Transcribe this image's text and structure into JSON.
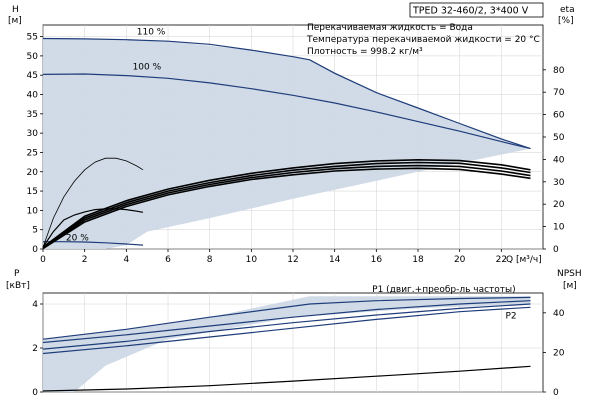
{
  "header": {
    "model": "TPED 32-460/2, 3*400 V",
    "fluid": "Перекачиваемая жидкость = Вода",
    "temp": "Температура перекачиваемой жидкости = 20 °C",
    "density": "Плотность = 998.2 кг/м³"
  },
  "colors": {
    "curve": "#1f3d7a",
    "area": "#cdd9e6",
    "area_light": "#e3ecf4",
    "grid": "#d0d0d0",
    "axis": "#000000"
  },
  "chart_data": [
    {
      "type": "line",
      "title": "",
      "xlabel": "Q [м³/ч]",
      "xlabel_unit": "Q [м³/ч]",
      "ylabel_left": [
        "H",
        "[м]"
      ],
      "ylabel_right": [
        "eta",
        "[%]"
      ],
      "xlim": [
        0,
        24
      ],
      "ylim_left": [
        0,
        58
      ],
      "ylim_right": [
        0,
        100
      ],
      "xticks": [
        0,
        2,
        4,
        6,
        8,
        10,
        12,
        14,
        16,
        18,
        20,
        22
      ],
      "yticks_left": [
        0,
        5,
        10,
        15,
        20,
        25,
        30,
        35,
        40,
        45,
        50,
        55
      ],
      "yticks_right": [
        0,
        10,
        20,
        30,
        40,
        50,
        60,
        70,
        80
      ],
      "grid": true,
      "envelope": [
        [
          0,
          54.5
        ],
        [
          2,
          54.4
        ],
        [
          6,
          53.8
        ],
        [
          10,
          51.5
        ],
        [
          12.8,
          49
        ],
        [
          16,
          40.5
        ],
        [
          20,
          32.5
        ],
        [
          23.4,
          26
        ],
        [
          18,
          20
        ],
        [
          12,
          13
        ],
        [
          8,
          8
        ],
        [
          5,
          4.5
        ],
        [
          4,
          1
        ],
        [
          3,
          0
        ],
        [
          0,
          0
        ]
      ],
      "series": [
        {
          "name": "110 %",
          "label": "110 %",
          "x": [
            0,
            2,
            4,
            6,
            8,
            10,
            12,
            12.8,
            14,
            16,
            18,
            20,
            22,
            23.4
          ],
          "y": [
            54.5,
            54.4,
            54.2,
            53.8,
            53.0,
            51.5,
            49.8,
            49,
            45.5,
            40.5,
            36.5,
            32.5,
            28.5,
            26
          ]
        },
        {
          "name": "100 %",
          "label": "100 %",
          "x": [
            0,
            2,
            4,
            6,
            8,
            10,
            12,
            14,
            16,
            18,
            20,
            22,
            23.4
          ],
          "y": [
            45.2,
            45.3,
            44.9,
            44.2,
            43.0,
            41.5,
            39.8,
            37.8,
            35.5,
            33,
            30.5,
            27.8,
            26
          ]
        },
        {
          "name": "20 %",
          "label": "20 %",
          "x": [
            0,
            1,
            2,
            3,
            4,
            4.8
          ],
          "y": [
            1.9,
            1.9,
            1.8,
            1.6,
            1.3,
            1.0
          ]
        },
        {
          "name": "",
          "label": "",
          "x": [
            0,
            0.5,
            1,
            1.5,
            2,
            2.5,
            3,
            3.5,
            4,
            4.5,
            4.8
          ],
          "y": [
            0.5,
            8.0,
            13.5,
            17.5,
            20.5,
            22.5,
            23.5,
            23.5,
            22.8,
            21.5,
            20.5
          ]
        },
        {
          "name": "",
          "label": "",
          "x": [
            0,
            0.5,
            1,
            1.5,
            2,
            2.5,
            3,
            3.5,
            4,
            4.5,
            4.8
          ],
          "y": [
            0.5,
            4.5,
            7.5,
            8.8,
            9.6,
            10.2,
            10.4,
            10.4,
            10.2,
            9.8,
            9.5
          ]
        },
        {
          "name": "",
          "label": "",
          "x": [
            0,
            2,
            4,
            6,
            8,
            10,
            12,
            14,
            16,
            18,
            20,
            22,
            23.4
          ],
          "y": [
            0.5,
            8.5,
            12.5,
            15.5,
            17.8,
            19.6,
            21.0,
            22.1,
            22.8,
            23.1,
            22.9,
            21.8,
            20.5
          ]
        },
        {
          "name": "",
          "label": "",
          "x": [
            0,
            2,
            4,
            6,
            8,
            10,
            12,
            14,
            16,
            18,
            20,
            22,
            23.4
          ],
          "y": [
            0.3,
            8.0,
            12.0,
            15.0,
            17.2,
            19.0,
            20.4,
            21.4,
            22.1,
            22.4,
            22.2,
            21.0,
            19.8
          ]
        },
        {
          "name": "",
          "label": "",
          "x": [
            0,
            2,
            4,
            6,
            8,
            10,
            12,
            14,
            16,
            18,
            20,
            22,
            23.4
          ],
          "y": [
            0.2,
            7.5,
            11.5,
            14.5,
            16.7,
            18.5,
            19.8,
            20.8,
            21.4,
            21.6,
            21.4,
            20.2,
            19.0
          ]
        },
        {
          "name": "",
          "label": "",
          "x": [
            0,
            2,
            4,
            6,
            8,
            10,
            12,
            14,
            16,
            18,
            20,
            22,
            23.4
          ],
          "y": [
            0.1,
            7.0,
            11.0,
            14.0,
            16.2,
            18.0,
            19.2,
            20.2,
            20.7,
            20.9,
            20.6,
            19.4,
            18.3
          ]
        }
      ]
    },
    {
      "type": "line",
      "title": "",
      "ylabel_left": [
        "P",
        "[кВт]"
      ],
      "ylabel_right": [
        "NPSH",
        "[м]"
      ],
      "xlim": [
        0,
        24
      ],
      "ylim_left": [
        0,
        4.5
      ],
      "ylim_right": [
        0,
        50
      ],
      "yticks_left": [
        0,
        2,
        4
      ],
      "yticks_right": [
        0,
        20,
        40
      ],
      "grid": true,
      "envelope": [
        [
          0,
          2.4
        ],
        [
          4,
          2.85
        ],
        [
          8,
          3.4
        ],
        [
          12.8,
          4.35
        ],
        [
          23.4,
          4.35
        ],
        [
          23.4,
          4.0
        ],
        [
          18,
          3.8
        ],
        [
          12,
          3.4
        ],
        [
          6,
          2.4
        ],
        [
          3,
          1.2
        ],
        [
          1.5,
          0
        ],
        [
          0,
          0
        ]
      ],
      "series": [
        {
          "name": "P1 (двиг.+преобр-ль частоты)",
          "label": "P1 (двиг.+преобр-ль частоты)",
          "x": [
            0,
            4,
            8,
            12.8,
            16,
            20,
            23.4
          ],
          "y": [
            2.4,
            2.85,
            3.4,
            4.0,
            4.15,
            4.25,
            4.3
          ]
        },
        {
          "name": "",
          "label": "",
          "x": [
            0,
            4,
            8,
            12,
            16,
            20,
            23.4
          ],
          "y": [
            2.25,
            2.6,
            3.0,
            3.4,
            3.75,
            4.0,
            4.15
          ]
        },
        {
          "name": "",
          "label": "",
          "x": [
            0,
            4,
            8,
            12,
            16,
            20,
            23.4
          ],
          "y": [
            1.95,
            2.3,
            2.75,
            3.15,
            3.5,
            3.8,
            4.0
          ]
        },
        {
          "name": "P2",
          "label": "P2",
          "x": [
            0,
            4,
            8,
            12,
            16,
            20,
            23.4
          ],
          "y": [
            1.75,
            2.1,
            2.5,
            2.9,
            3.3,
            3.65,
            3.85
          ]
        },
        {
          "name": "NPSH",
          "label": "",
          "axis": "right",
          "x": [
            0,
            4,
            8,
            12,
            16,
            20,
            23.4
          ],
          "y": [
            0.5,
            1.5,
            3.2,
            5.5,
            8.0,
            10.5,
            13.0
          ]
        }
      ]
    }
  ]
}
